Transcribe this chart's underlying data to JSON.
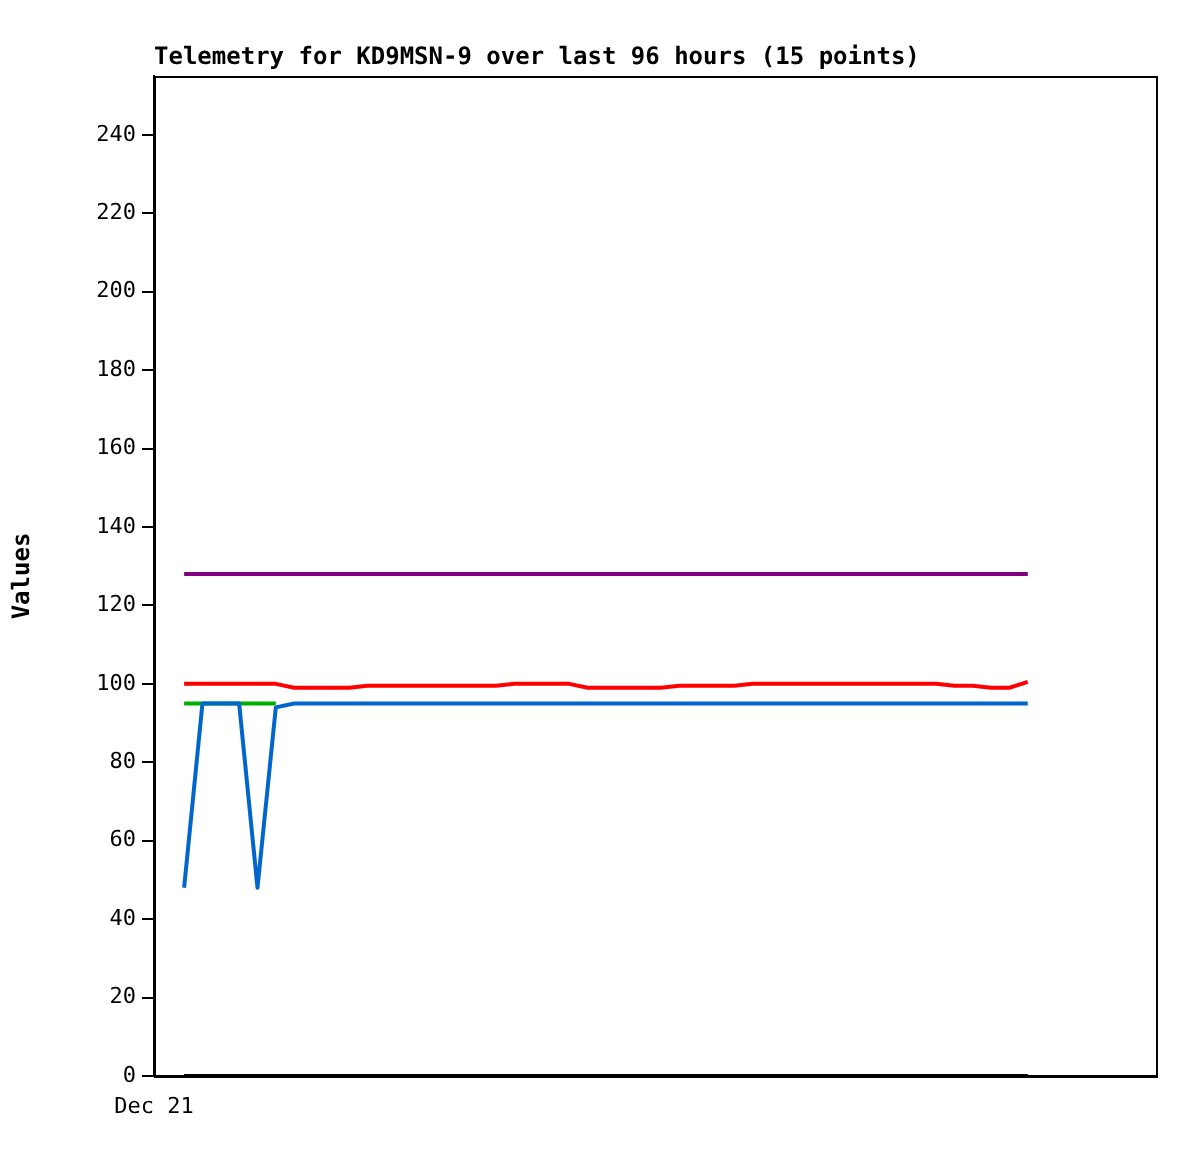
{
  "chart_data": {
    "type": "line",
    "title": "Telemetry for KD9MSN-9 over last 96 hours (15 points)",
    "ylabel": "Values",
    "categories": [
      null,
      null,
      null,
      null,
      null,
      null,
      null,
      null,
      null,
      null,
      null,
      null,
      null,
      null,
      null,
      null,
      null,
      null,
      null,
      null,
      null,
      null,
      null,
      null,
      null,
      null,
      null,
      null,
      null,
      null,
      null,
      null,
      null,
      null,
      null,
      null,
      null,
      null,
      null,
      null,
      null,
      null,
      null,
      null,
      null,
      null,
      null
    ],
    "annotations": [
      "Dec 21"
    ],
    "ylim": [
      0,
      255
    ],
    "yticks": [
      0,
      20,
      40,
      60,
      80,
      100,
      120,
      140,
      160,
      180,
      200,
      220,
      240
    ],
    "grid": false,
    "legend": false,
    "marker": "none",
    "line_style": "solid",
    "series": [
      {
        "color": "#000000",
        "values": [
          0,
          0,
          0,
          0,
          0,
          0,
          0,
          0,
          0,
          0,
          0,
          0,
          0,
          0,
          0,
          0,
          0,
          0,
          0,
          0,
          0,
          0,
          0,
          0,
          0,
          0,
          0,
          0,
          0,
          0,
          0,
          0,
          0,
          0,
          0,
          0,
          0,
          0,
          0,
          0,
          0,
          0,
          0,
          0,
          0,
          0,
          0
        ]
      },
      {
        "color": "#800080",
        "values": [
          128,
          128,
          128,
          128,
          128,
          128,
          128,
          128,
          128,
          128,
          128,
          128,
          128,
          128,
          128,
          128,
          128,
          128,
          128,
          128,
          128,
          128,
          128,
          128,
          128,
          128,
          128,
          128,
          128,
          128,
          128,
          128,
          128,
          128,
          128,
          128,
          128,
          128,
          128,
          128,
          128,
          128,
          128,
          128,
          128,
          128,
          128
        ]
      },
      {
        "color": "#ff0000",
        "values": [
          100,
          100,
          100,
          100,
          100,
          100,
          99,
          99,
          99,
          99,
          99.5,
          99.5,
          99.5,
          99.5,
          99.5,
          99.5,
          99.5,
          99.5,
          100,
          100,
          100,
          100,
          99,
          99,
          99,
          99,
          99,
          99.5,
          99.5,
          99.5,
          99.5,
          100,
          100,
          100,
          100,
          100,
          100,
          100,
          100,
          100,
          100,
          100,
          99.5,
          99.5,
          99,
          99,
          100.5
        ]
      },
      {
        "color": "#00b000",
        "values": [
          95,
          95,
          95,
          95,
          95,
          95,
          null,
          null,
          null,
          null,
          null,
          null,
          null,
          null,
          null,
          null,
          null,
          null,
          null,
          null,
          null,
          null,
          null,
          null,
          null,
          null,
          null,
          null,
          null,
          null,
          null,
          null,
          null,
          null,
          null,
          null,
          null,
          null,
          null,
          null,
          null,
          null,
          null,
          null,
          null,
          null,
          null
        ]
      },
      {
        "color": "#0066cc",
        "values": [
          48,
          95,
          95,
          95,
          48,
          94,
          95,
          95,
          95,
          95,
          95,
          95,
          95,
          95,
          95,
          95,
          95,
          95,
          95,
          95,
          95,
          95,
          95,
          95,
          95,
          95,
          95,
          95,
          95,
          95,
          95,
          95,
          95,
          95,
          95,
          95,
          95,
          95,
          95,
          95,
          95,
          95,
          95,
          95,
          95,
          95,
          95
        ]
      }
    ]
  }
}
